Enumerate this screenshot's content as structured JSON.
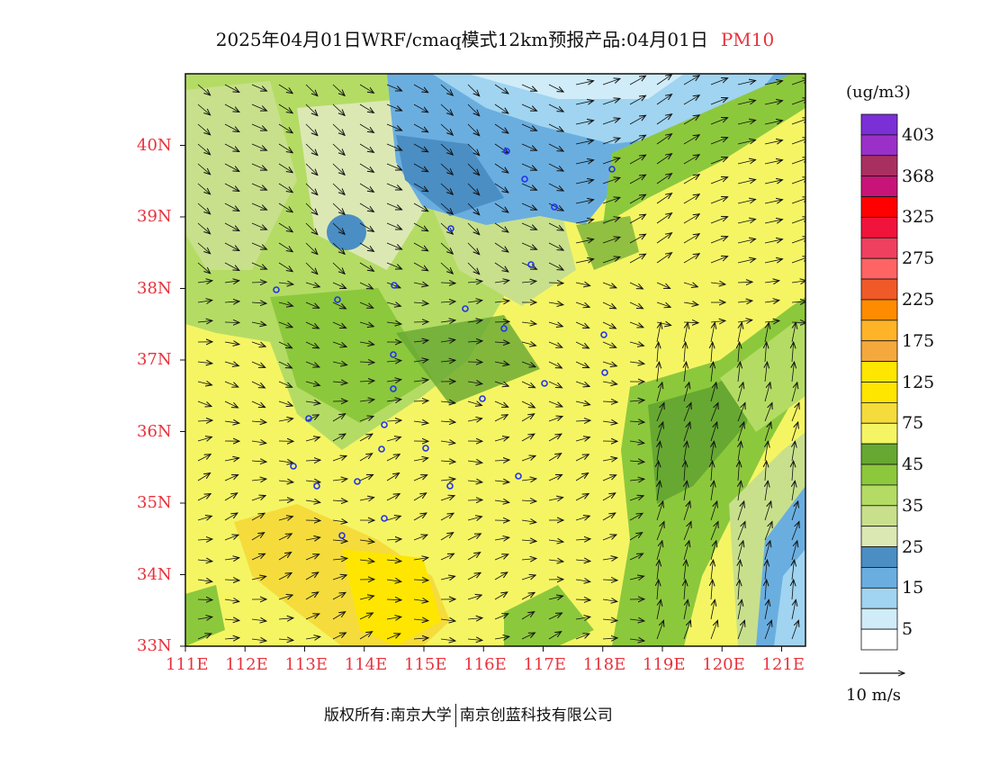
{
  "title": {
    "text": "2025年04月01日WRF/cmaq模式12km预报产品:04月01日",
    "variable": "PM10"
  },
  "map": {
    "lon_range": [
      111,
      121.4
    ],
    "lat_range": [
      33,
      41
    ],
    "lon_labels": [
      "111E",
      "112E",
      "113E",
      "114E",
      "115E",
      "116E",
      "117E",
      "118E",
      "119E",
      "120E",
      "121E"
    ],
    "lat_labels": [
      "33N",
      "34N",
      "35N",
      "36N",
      "37N",
      "38N",
      "39N",
      "40N"
    ]
  },
  "colorbar": {
    "unit": "(ug/m3)",
    "labels": [
      "403",
      "368",
      "325",
      "275",
      "225",
      "175",
      "125",
      "75",
      "45",
      "35",
      "25",
      "15",
      "5"
    ],
    "colors": [
      "#7b2fd6",
      "#9a30c8",
      "#a83060",
      "#c81478",
      "#ff0000",
      "#f0143c",
      "#f04060",
      "#ff6464",
      "#f05a28",
      "#ff8c00",
      "#ffb428",
      "#f5a83c",
      "#ffe600",
      "#ffe600",
      "#f5dc3c",
      "#f5f564",
      "#66a832",
      "#8cc83c",
      "#b4dc64",
      "#c8e08c",
      "#dce8b4",
      "#4a8ec4",
      "#6aaee0",
      "#a0d4f0",
      "#d0ecf8",
      "#ffffff"
    ]
  },
  "wind_reference": {
    "label": "10 m/s"
  },
  "copyright": {
    "owner": "版权所有:南京大学",
    "company": "南京创蓝科技有限公司"
  }
}
